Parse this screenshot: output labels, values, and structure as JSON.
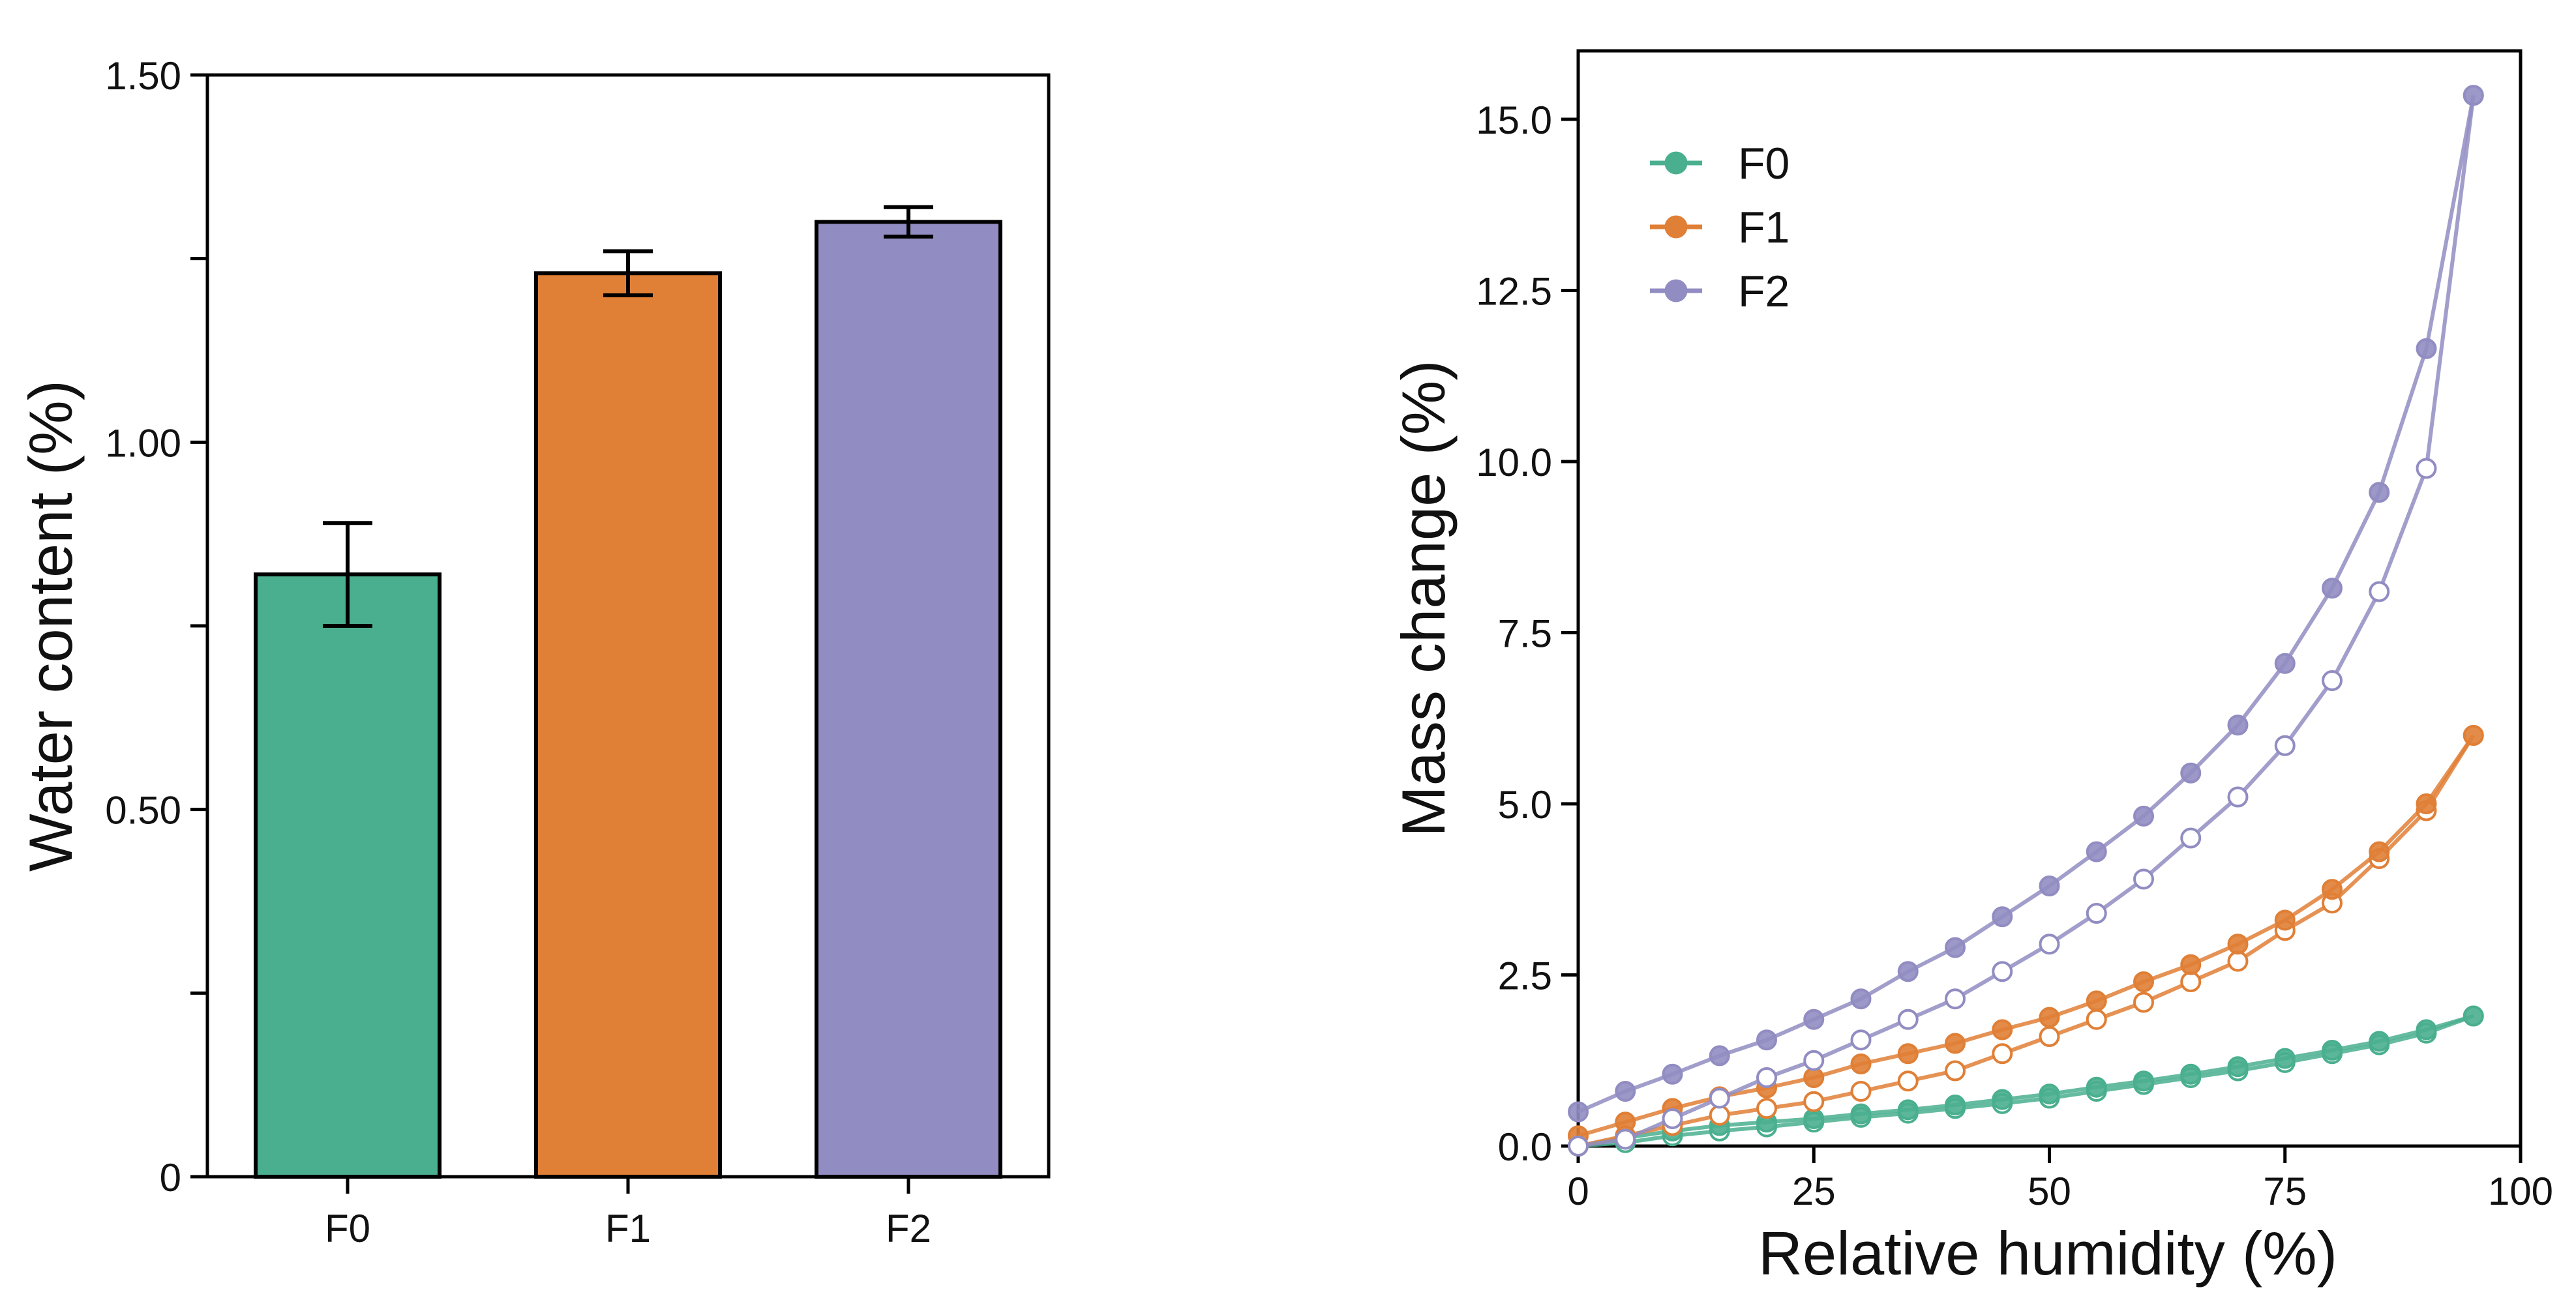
{
  "colors": {
    "F0": "#4aaf8e",
    "F1": "#e07f36",
    "F2": "#918dc2",
    "axis": "#000000"
  },
  "chart_data": [
    {
      "type": "bar",
      "title": "",
      "xlabel": "",
      "ylabel": "Water content (%)",
      "categories": [
        "F0",
        "F1",
        "F2"
      ],
      "values": [
        0.82,
        1.23,
        1.3
      ],
      "errors": [
        0.07,
        0.03,
        0.02
      ],
      "ylim": [
        0,
        1.5
      ],
      "yticks": [
        0,
        0.25,
        0.5,
        0.75,
        1.0,
        1.25,
        1.5
      ],
      "ytick_labels": [
        "0",
        "",
        "0.50",
        "",
        "1.00",
        "",
        "1.50"
      ],
      "grid": false,
      "legend": "none"
    },
    {
      "type": "line",
      "title": "",
      "xlabel": "Relative humidity (%)",
      "ylabel": "Mass change (%)",
      "xlim": [
        0,
        100
      ],
      "ylim": [
        0,
        16
      ],
      "xticks": [
        0,
        25,
        50,
        75,
        100
      ],
      "xtick_labels": [
        "0",
        "25",
        "50",
        "75",
        "100"
      ],
      "yticks": [
        0,
        2.5,
        5,
        7.5,
        10,
        12.5,
        15
      ],
      "ytick_labels": [
        "0.0",
        "2.5",
        "5.0",
        "7.5",
        "10.0",
        "12.5",
        "15.0"
      ],
      "grid": false,
      "legend": "top-left",
      "x": [
        0,
        5,
        10,
        15,
        20,
        25,
        30,
        35,
        40,
        45,
        50,
        55,
        60,
        65,
        70,
        75,
        80,
        85,
        90,
        95
      ],
      "series": [
        {
          "name": "F0",
          "branch": "sorption",
          "marker": "open",
          "values": [
            0.0,
            0.05,
            0.15,
            0.22,
            0.28,
            0.35,
            0.42,
            0.48,
            0.55,
            0.62,
            0.7,
            0.8,
            0.9,
            1.0,
            1.1,
            1.22,
            1.35,
            1.48,
            1.65,
            1.9
          ]
        },
        {
          "name": "F0",
          "branch": "desorption",
          "marker": "filled",
          "values": [
            0.0,
            0.12,
            0.22,
            0.3,
            0.35,
            0.4,
            0.47,
            0.53,
            0.6,
            0.68,
            0.76,
            0.86,
            0.95,
            1.05,
            1.16,
            1.28,
            1.4,
            1.53,
            1.7,
            1.9
          ]
        },
        {
          "name": "F1",
          "branch": "sorption",
          "marker": "open",
          "values": [
            0.0,
            0.15,
            0.3,
            0.45,
            0.55,
            0.65,
            0.8,
            0.95,
            1.1,
            1.35,
            1.6,
            1.85,
            2.1,
            2.4,
            2.7,
            3.15,
            3.55,
            4.2,
            4.9,
            6.0
          ]
        },
        {
          "name": "F1",
          "branch": "desorption",
          "marker": "filled",
          "values": [
            0.15,
            0.35,
            0.55,
            0.72,
            0.85,
            1.0,
            1.2,
            1.35,
            1.5,
            1.7,
            1.88,
            2.12,
            2.4,
            2.65,
            2.95,
            3.3,
            3.75,
            4.3,
            5.0,
            6.0
          ]
        },
        {
          "name": "F2",
          "branch": "sorption",
          "marker": "open",
          "values": [
            0.0,
            0.1,
            0.4,
            0.7,
            1.0,
            1.25,
            1.55,
            1.85,
            2.15,
            2.55,
            2.95,
            3.4,
            3.9,
            4.5,
            5.1,
            5.85,
            6.8,
            8.1,
            9.9,
            15.35
          ]
        },
        {
          "name": "F2",
          "branch": "desorption",
          "marker": "filled",
          "values": [
            0.5,
            0.8,
            1.05,
            1.32,
            1.55,
            1.85,
            2.15,
            2.55,
            2.9,
            3.35,
            3.8,
            4.3,
            4.82,
            5.45,
            6.15,
            7.05,
            8.15,
            9.55,
            11.65,
            15.35
          ]
        }
      ],
      "legend_entries": [
        "F0",
        "F1",
        "F2"
      ]
    }
  ]
}
